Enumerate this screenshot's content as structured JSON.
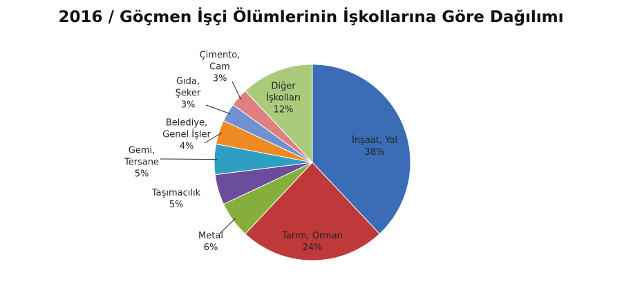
{
  "chart_data": {
    "type": "pie",
    "title": "2016 / Göçmen İşçi Ölümlerinin İşkollarına Göre Dağılımı",
    "categories": [
      "İnşaat, Yol",
      "Tarım, Orman",
      "Metal",
      "Taşımacılık",
      "Gemi, Tersane",
      "Belediye, Genel İşler",
      "Gıda, Şeker",
      "Çimento, Cam",
      "Diğer İşkolları"
    ],
    "values": [
      38,
      24,
      6,
      5,
      5,
      4,
      3,
      3,
      12
    ],
    "value_labels": [
      "38%",
      "24%",
      "6%",
      "5%",
      "5%",
      "4%",
      "3%",
      "3%",
      "12%"
    ],
    "colors": [
      "#3a6db5",
      "#c0393a",
      "#86ae3d",
      "#6c4c9c",
      "#2e9fc3",
      "#ef8a22",
      "#6f91d2",
      "#de8080",
      "#aacb7c"
    ]
  }
}
